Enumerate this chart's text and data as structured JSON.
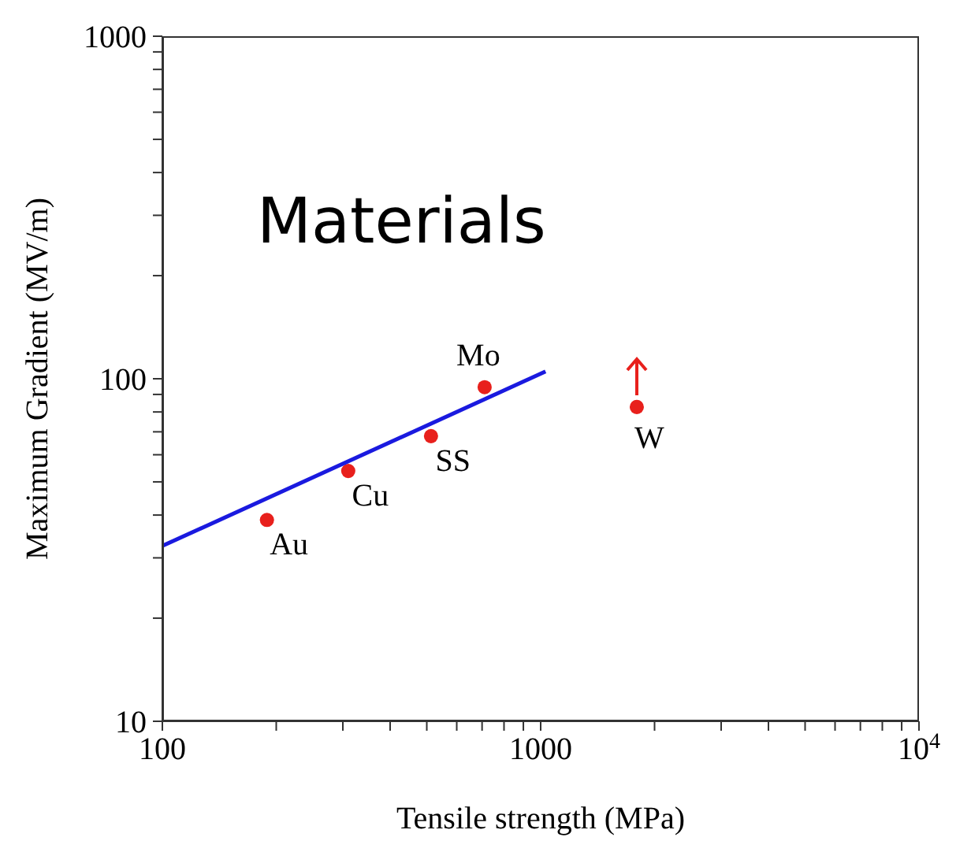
{
  "chart_data": {
    "type": "scatter",
    "xlabel": "Tensile strength (MPa)",
    "ylabel": "Maximum Gradient (MV/m)",
    "log": "xy",
    "xlim": [
      100,
      10000
    ],
    "ylim": [
      10,
      1000
    ],
    "xticks": [
      100,
      {
        "value": 200,
        "label": null
      },
      {
        "value": 300,
        "label": null
      },
      {
        "value": 400,
        "label": null
      },
      {
        "value": 500,
        "label": null
      },
      {
        "value": 600,
        "label": null
      },
      {
        "value": 700,
        "label": null
      },
      {
        "value": 800,
        "label": null
      },
      {
        "value": 900,
        "label": null
      },
      1000,
      {
        "value": 2000,
        "label": null
      },
      {
        "value": 3000,
        "label": null
      },
      {
        "value": 4000,
        "label": null
      },
      {
        "value": 5000,
        "label": null
      },
      {
        "value": 6000,
        "label": null
      },
      {
        "value": 7000,
        "label": null
      },
      {
        "value": 8000,
        "label": null
      },
      {
        "value": 9000,
        "label": null
      },
      {
        "value": 10000,
        "label": "10$^{4}$"
      }
    ],
    "yticks": [
      10,
      {
        "value": 20,
        "label": null
      },
      {
        "value": 30,
        "label": null
      },
      {
        "value": 40,
        "label": null
      },
      {
        "value": 50,
        "label": null
      },
      {
        "value": 60,
        "label": null
      },
      {
        "value": 70,
        "label": null
      },
      {
        "value": 80,
        "label": null
      },
      {
        "value": 90,
        "label": null
      },
      100,
      {
        "value": 200,
        "label": null
      },
      {
        "value": 300,
        "label": null
      },
      {
        "value": 400,
        "label": null
      },
      {
        "value": 500,
        "label": null
      },
      {
        "value": 600,
        "label": null
      },
      {
        "value": 700,
        "label": null
      },
      {
        "value": 800,
        "label": null
      },
      {
        "value": 900,
        "label": null
      },
      1000
    ],
    "series": [
      {
        "color": "#e8201c",
        "marker": "circle",
        "x": [
          189,
          310,
          513,
          711,
          1795
        ],
        "values": [
          38.7,
          53.8,
          68,
          94.5,
          82.7
        ]
      },
      {
        "type": "line",
        "color": "#1a1adf",
        "marker": "none",
        "x": [
          100,
          1030
        ],
        "values": [
          32.5,
          105
        ]
      }
    ],
    "annotations": [
      "Materials",
      {
        "text": "Au",
        "x": 189,
        "y": 38.7
      },
      {
        "text": "Cu",
        "x": 310,
        "y": 53.8
      },
      {
        "text": "SS",
        "x": 513,
        "y": 68
      },
      {
        "text": "Mo",
        "x": 711,
        "y": 94.5
      },
      {
        "text": "W",
        "x": 1795,
        "y": 82.7
      }
    ]
  }
}
